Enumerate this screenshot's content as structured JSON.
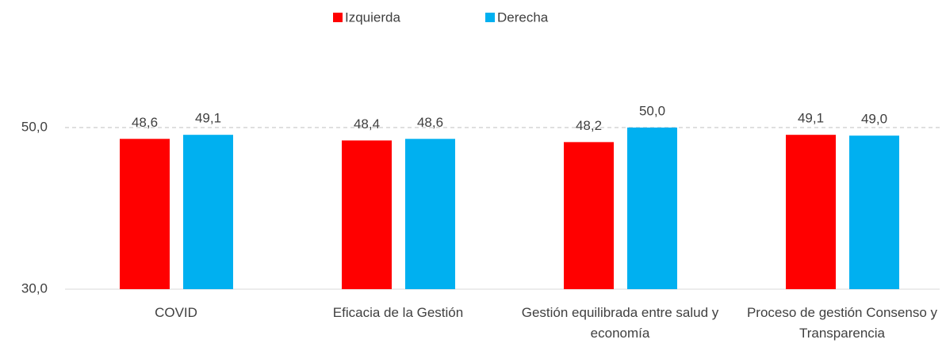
{
  "chart_data": {
    "type": "bar",
    "categories": [
      "COVID",
      "Eficacia de la Gestión",
      "Gestión equilibrada entre salud y economía",
      "Proceso de gestión Consenso y Transparencia"
    ],
    "series": [
      {
        "name": "Izquierda",
        "color": "#ff0000",
        "values": [
          48.6,
          48.4,
          48.2,
          49.1
        ],
        "value_labels": [
          "48,6",
          "48,4",
          "48,2",
          "49,1"
        ]
      },
      {
        "name": "Derecha",
        "color": "#00b0f0",
        "values": [
          49.1,
          48.6,
          50.0,
          49.0
        ],
        "value_labels": [
          "49,1",
          "48,6",
          "50,0",
          "49,0"
        ]
      }
    ],
    "ylim": [
      30,
      50
    ],
    "yticks": [
      {
        "value": 30,
        "label": "30,0"
      },
      {
        "value": 50,
        "label": "50,0"
      }
    ],
    "grid": true,
    "legend": "top"
  }
}
